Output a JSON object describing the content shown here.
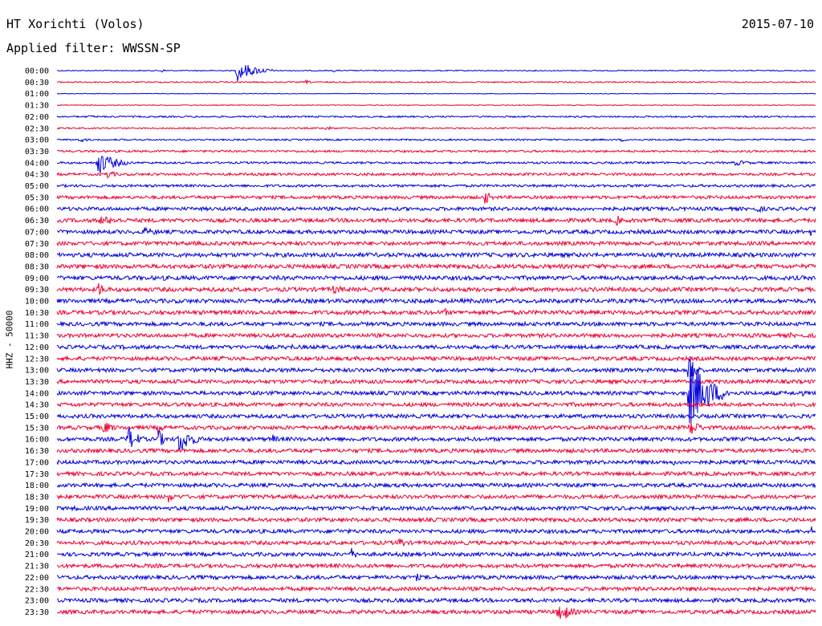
{
  "header": {
    "station": "HT Xorichti (Volos)",
    "date": "2015-07-10",
    "filter": "Applied filter: WWSSN-SP"
  },
  "chart_data": {
    "type": "line",
    "channel_label": "HHZ - 50000",
    "colors": [
      "#0000dd",
      "#ee0033"
    ],
    "row_labels": [
      "00:00",
      "00:30",
      "01:00",
      "01:30",
      "02:00",
      "02:30",
      "03:00",
      "03:30",
      "04:00",
      "04:30",
      "05:00",
      "05:30",
      "06:00",
      "06:30",
      "07:00",
      "07:30",
      "08:00",
      "08:30",
      "09:00",
      "09:30",
      "10:00",
      "10:30",
      "11:00",
      "11:30",
      "12:00",
      "12:30",
      "13:00",
      "13:30",
      "14:00",
      "14:30",
      "15:00",
      "15:30",
      "16:00",
      "16:30",
      "17:00",
      "17:30",
      "18:00",
      "18:30",
      "19:00",
      "19:30",
      "20:00",
      "20:30",
      "21:00",
      "21:30",
      "22:00",
      "22:30",
      "23:00",
      "23:30"
    ],
    "row_minutes": 30,
    "noise": [
      0.6,
      0.8,
      0.4,
      0.5,
      1.0,
      0.9,
      1.0,
      1.3,
      1.3,
      1.6,
      1.6,
      2.0,
      2.2,
      2.4,
      2.4,
      2.4,
      2.6,
      2.6,
      2.6,
      2.6,
      2.6,
      2.6,
      2.4,
      2.4,
      2.4,
      2.4,
      2.4,
      2.4,
      2.4,
      2.4,
      2.4,
      2.4,
      2.4,
      2.4,
      2.4,
      2.4,
      2.4,
      2.4,
      2.4,
      2.4,
      2.4,
      2.4,
      2.4,
      2.4,
      2.4,
      2.4,
      2.4,
      2.4
    ],
    "events": [
      {
        "row": 0,
        "minute": 7.1,
        "amplitude": 14,
        "duration": 1.5
      },
      {
        "row": 0,
        "minute": 4.1,
        "amplitude": 3,
        "duration": 0.4
      },
      {
        "row": 0,
        "minute": 10.9,
        "amplitude": 2,
        "duration": 0.6
      },
      {
        "row": 1,
        "minute": 9.8,
        "amplitude": 3,
        "duration": 0.6
      },
      {
        "row": 4,
        "minute": 1.2,
        "amplitude": 2,
        "duration": 1.5
      },
      {
        "row": 5,
        "minute": 10.6,
        "amplitude": 3,
        "duration": 0.8
      },
      {
        "row": 6,
        "minute": 0.9,
        "amplitude": 5,
        "duration": 0.5
      },
      {
        "row": 6,
        "minute": 22.3,
        "amplitude": 3,
        "duration": 0.6
      },
      {
        "row": 8,
        "minute": 1.6,
        "amplitude": 16,
        "duration": 1.4
      },
      {
        "row": 8,
        "minute": 26.8,
        "amplitude": 4,
        "duration": 1.5
      },
      {
        "row": 9,
        "minute": 1.9,
        "amplitude": 6,
        "duration": 1.0
      },
      {
        "row": 9,
        "minute": 14.0,
        "amplitude": 2,
        "duration": 0.4
      },
      {
        "row": 11,
        "minute": 16.9,
        "amplitude": 11,
        "duration": 0.5
      },
      {
        "row": 12,
        "minute": 27.7,
        "amplitude": 5,
        "duration": 0.9
      },
      {
        "row": 13,
        "minute": 1.7,
        "amplitude": 6,
        "duration": 2.6
      },
      {
        "row": 13,
        "minute": 22.1,
        "amplitude": 8,
        "duration": 0.6
      },
      {
        "row": 14,
        "minute": 3.4,
        "amplitude": 6,
        "duration": 1.7
      },
      {
        "row": 14,
        "minute": 29.8,
        "amplitude": 6,
        "duration": 0.2
      },
      {
        "row": 18,
        "minute": 4.2,
        "amplitude": 4,
        "duration": 0.5
      },
      {
        "row": 18,
        "minute": 14.8,
        "amplitude": 3,
        "duration": 0.8
      },
      {
        "row": 18,
        "minute": 16.5,
        "amplitude": 3,
        "duration": 0.5
      },
      {
        "row": 19,
        "minute": 1.6,
        "amplitude": 10,
        "duration": 0.8
      },
      {
        "row": 19,
        "minute": 10.9,
        "amplitude": 6,
        "duration": 1.3
      },
      {
        "row": 21,
        "minute": 15.3,
        "amplitude": 7,
        "duration": 0.4
      },
      {
        "row": 21,
        "minute": 23.0,
        "amplitude": 3,
        "duration": 0.6
      },
      {
        "row": 23,
        "minute": 15.0,
        "amplitude": 3,
        "duration": 0.4
      },
      {
        "row": 23,
        "minute": 29.0,
        "amplitude": 4,
        "duration": 0.4
      },
      {
        "row": 24,
        "minute": 2.6,
        "amplitude": 4,
        "duration": 0.4
      },
      {
        "row": 24,
        "minute": 4.1,
        "amplitude": 3,
        "duration": 0.5
      },
      {
        "row": 24,
        "minute": 9.3,
        "amplitude": 4,
        "duration": 0.3
      },
      {
        "row": 25,
        "minute": 6.5,
        "amplitude": 4,
        "duration": 0.5
      },
      {
        "row": 25,
        "minute": 10.3,
        "amplitude": 6,
        "duration": 0.4
      },
      {
        "row": 25,
        "minute": 22.8,
        "amplitude": 3,
        "duration": 0.3
      },
      {
        "row": 26,
        "minute": 25.0,
        "amplitude": 40,
        "duration": 0.4
      },
      {
        "row": 28,
        "minute": 25.0,
        "amplitude": 50,
        "duration": 1.6
      },
      {
        "row": 28,
        "minute": 29.4,
        "amplitude": 10,
        "duration": 0.2
      },
      {
        "row": 31,
        "minute": 1.8,
        "amplitude": 10,
        "duration": 0.9
      },
      {
        "row": 31,
        "minute": 4.0,
        "amplitude": 10,
        "duration": 0.4
      },
      {
        "row": 31,
        "minute": 25.0,
        "amplitude": 14,
        "duration": 0.8
      },
      {
        "row": 32,
        "minute": 2.8,
        "amplitude": 18,
        "duration": 0.8
      },
      {
        "row": 32,
        "minute": 4.0,
        "amplitude": 14,
        "duration": 0.5
      },
      {
        "row": 32,
        "minute": 4.8,
        "amplitude": 20,
        "duration": 1.1
      },
      {
        "row": 32,
        "minute": 8.5,
        "amplitude": 8,
        "duration": 0.5
      },
      {
        "row": 32,
        "minute": 11.7,
        "amplitude": 4,
        "duration": 0.8
      },
      {
        "row": 32,
        "minute": 12.6,
        "amplitude": 3,
        "duration": 0.5
      },
      {
        "row": 33,
        "minute": 4.6,
        "amplitude": 3,
        "duration": 2.0
      },
      {
        "row": 33,
        "minute": 9.6,
        "amplitude": 3,
        "duration": 1.2
      },
      {
        "row": 33,
        "minute": 14.5,
        "amplitude": 3,
        "duration": 0.6
      },
      {
        "row": 33,
        "minute": 16.5,
        "amplitude": 3,
        "duration": 0.6
      },
      {
        "row": 33,
        "minute": 20.3,
        "amplitude": 4,
        "duration": 0.6
      },
      {
        "row": 34,
        "minute": 24.3,
        "amplitude": 6,
        "duration": 0.4
      },
      {
        "row": 36,
        "minute": 12.5,
        "amplitude": 5,
        "duration": 0.4
      },
      {
        "row": 37,
        "minute": 4.4,
        "amplitude": 8,
        "duration": 0.6
      },
      {
        "row": 38,
        "minute": 0.7,
        "amplitude": 6,
        "duration": 0.5
      },
      {
        "row": 38,
        "minute": 15.3,
        "amplitude": 5,
        "duration": 0.2
      },
      {
        "row": 40,
        "minute": 11.1,
        "amplitude": 5,
        "duration": 0.4
      },
      {
        "row": 40,
        "minute": 29.8,
        "amplitude": 8,
        "duration": 0.3
      },
      {
        "row": 41,
        "minute": 13.5,
        "amplitude": 11,
        "duration": 0.5
      },
      {
        "row": 42,
        "minute": 11.6,
        "amplitude": 10,
        "duration": 0.5
      },
      {
        "row": 42,
        "minute": 3.3,
        "amplitude": 3,
        "duration": 0.3
      },
      {
        "row": 44,
        "minute": 14.2,
        "amplitude": 6,
        "duration": 0.5
      },
      {
        "row": 44,
        "minute": 22.0,
        "amplitude": 3,
        "duration": 0.4
      },
      {
        "row": 47,
        "minute": 19.8,
        "amplitude": 18,
        "duration": 0.9
      }
    ]
  }
}
